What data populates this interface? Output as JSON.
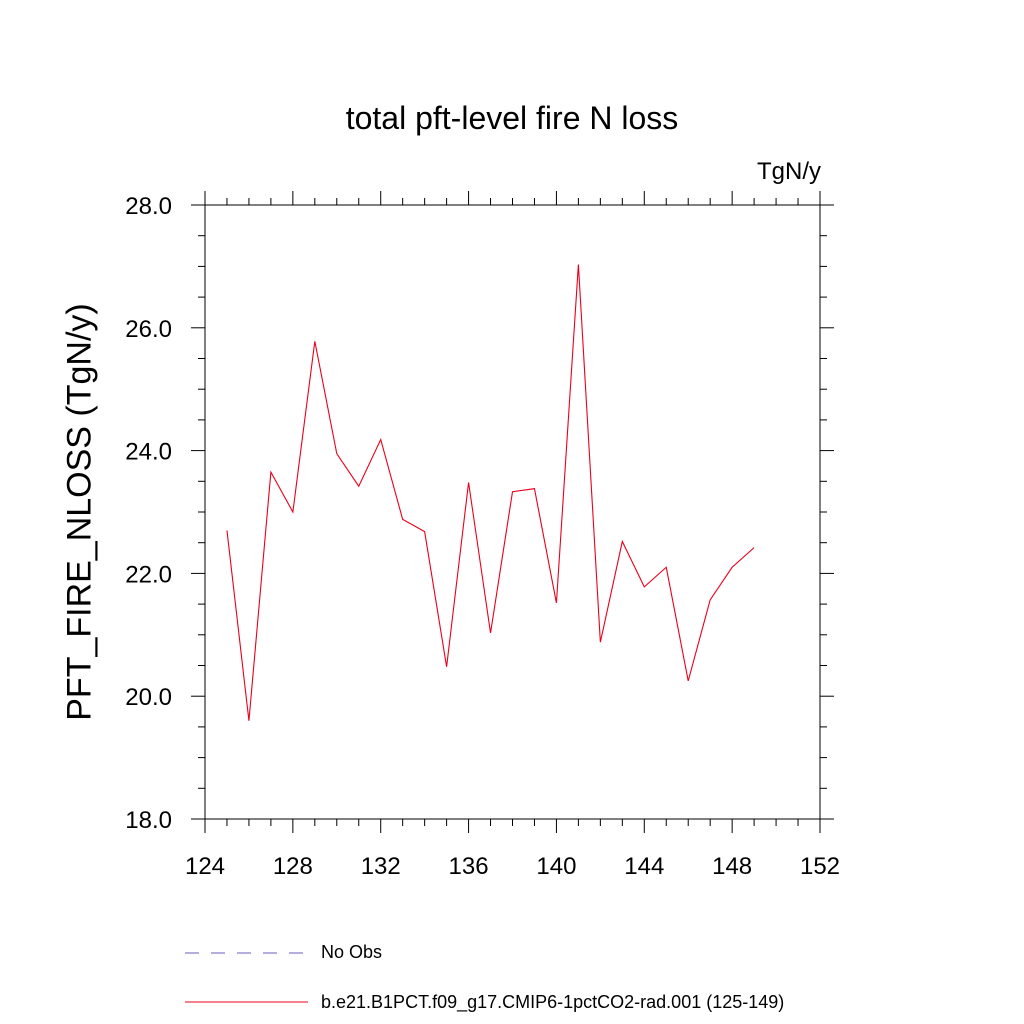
{
  "chart_data": {
    "type": "line",
    "title": "total pft-level fire N loss",
    "units": "TgN/y",
    "ylabel": "PFT_FIRE_NLOSS  (TgN/y)",
    "xlabel": "",
    "xlim": [
      124,
      152
    ],
    "ylim": [
      18,
      28
    ],
    "x_ticks": [
      124,
      128,
      132,
      136,
      140,
      144,
      148,
      152
    ],
    "x_tick_labels": [
      "124",
      "128",
      "132",
      "136",
      "140",
      "144",
      "148",
      "152"
    ],
    "y_ticks": [
      18,
      20,
      22,
      24,
      26,
      28
    ],
    "y_tick_labels": [
      "18.0",
      "20.0",
      "22.0",
      "24.0",
      "26.0",
      "28.0"
    ],
    "legend_placement": "bottom",
    "series": [
      {
        "name": "b.e21.B1PCT.f09_g17.CMIP6-1pctCO2-rad.001 (125-149)",
        "color": "#e8001c",
        "x": [
          125,
          126,
          127,
          128,
          129,
          130,
          131,
          132,
          133,
          134,
          135,
          136,
          137,
          138,
          139,
          140,
          141,
          142,
          143,
          144,
          145,
          146,
          147,
          148,
          149
        ],
        "values": [
          22.7,
          19.6,
          23.65,
          23.0,
          25.78,
          23.95,
          23.42,
          24.18,
          22.88,
          22.68,
          20.48,
          23.48,
          21.03,
          23.33,
          23.38,
          21.52,
          27.03,
          20.88,
          22.52,
          21.78,
          22.1,
          20.25,
          21.57,
          22.1,
          22.42
        ]
      }
    ],
    "legend": [
      {
        "label": "No Obs",
        "color": "#6b5fbf",
        "dash": true
      },
      {
        "label": "b.e21.B1PCT.f09_g17.CMIP6-1pctCO2-rad.001 (125-149)",
        "color": "#e8001c",
        "dash": false
      }
    ]
  }
}
